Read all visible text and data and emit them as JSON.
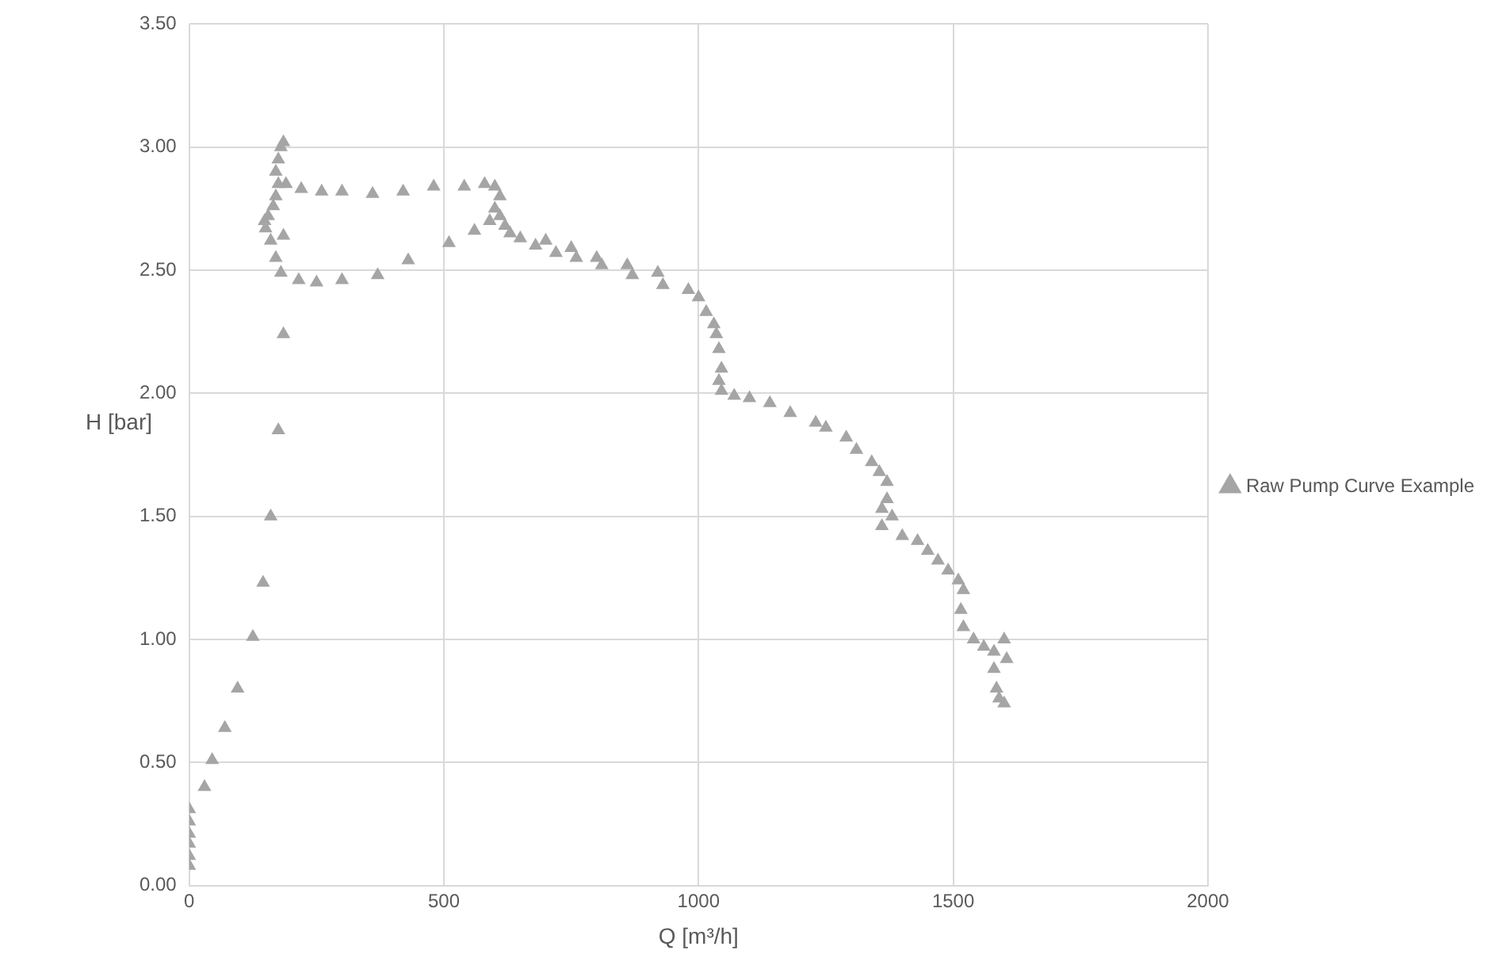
{
  "chart_data": {
    "type": "scatter",
    "xlabel": "Q [m³/h]",
    "ylabel": "H [bar]",
    "xlim": [
      0,
      2000
    ],
    "xticks": [
      0,
      500,
      1000,
      1500,
      2000
    ],
    "ylim": [
      0,
      3.5
    ],
    "yticks": [
      {
        "value": 0,
        "label": "0.00"
      },
      {
        "value": 0.5,
        "label": "0.50"
      },
      {
        "value": 1,
        "label": "1.00"
      },
      {
        "value": 1.5,
        "label": "1.50"
      },
      {
        "value": 2,
        "label": "2.00"
      },
      {
        "value": 2.5,
        "label": "2.50"
      },
      {
        "value": 3,
        "label": "3.00"
      },
      {
        "value": 3.5,
        "label": "3.50"
      }
    ],
    "grid": true,
    "legend": "right",
    "marker": "triangle",
    "series": [
      {
        "name": "Raw Pump Curve Example",
        "color": "#a5a5a5",
        "x": [
          0,
          0,
          0,
          0,
          0,
          0,
          30,
          45,
          70,
          95,
          125,
          145,
          160,
          175,
          185,
          180,
          170,
          160,
          150,
          148,
          155,
          165,
          170,
          175,
          170,
          175,
          180,
          185,
          190,
          185,
          220,
          260,
          300,
          360,
          420,
          480,
          540,
          580,
          600,
          610,
          215,
          250,
          300,
          370,
          430,
          510,
          560,
          590,
          600,
          610,
          620,
          630,
          650,
          680,
          700,
          720,
          750,
          760,
          800,
          810,
          860,
          870,
          920,
          930,
          980,
          1000,
          1015,
          1030,
          1035,
          1040,
          1045,
          1040,
          1045,
          1070,
          1100,
          1140,
          1180,
          1230,
          1250,
          1290,
          1310,
          1340,
          1355,
          1370,
          1370,
          1360,
          1380,
          1360,
          1400,
          1430,
          1450,
          1470,
          1490,
          1510,
          1520,
          1515,
          1520,
          1540,
          1560,
          1580,
          1600,
          1605,
          1580,
          1585,
          1590,
          1600
        ],
        "values": [
          0.08,
          0.12,
          0.17,
          0.21,
          0.26,
          0.31,
          0.4,
          0.51,
          0.64,
          0.8,
          1.01,
          1.23,
          1.5,
          1.85,
          2.24,
          2.49,
          2.55,
          2.62,
          2.67,
          2.7,
          2.72,
          2.76,
          2.8,
          2.85,
          2.9,
          2.95,
          3.0,
          3.02,
          2.85,
          2.64,
          2.83,
          2.82,
          2.82,
          2.81,
          2.82,
          2.84,
          2.84,
          2.85,
          2.84,
          2.8,
          2.46,
          2.45,
          2.46,
          2.48,
          2.54,
          2.61,
          2.66,
          2.7,
          2.75,
          2.72,
          2.68,
          2.65,
          2.63,
          2.6,
          2.62,
          2.57,
          2.59,
          2.55,
          2.55,
          2.52,
          2.52,
          2.48,
          2.49,
          2.44,
          2.42,
          2.39,
          2.33,
          2.28,
          2.24,
          2.18,
          2.1,
          2.05,
          2.01,
          1.99,
          1.98,
          1.96,
          1.92,
          1.88,
          1.86,
          1.82,
          1.77,
          1.72,
          1.68,
          1.64,
          1.57,
          1.53,
          1.5,
          1.46,
          1.42,
          1.4,
          1.36,
          1.32,
          1.28,
          1.24,
          1.2,
          1.12,
          1.05,
          1.0,
          0.97,
          0.95,
          1.0,
          0.92,
          0.88,
          0.8,
          0.76,
          0.74
        ]
      }
    ]
  }
}
